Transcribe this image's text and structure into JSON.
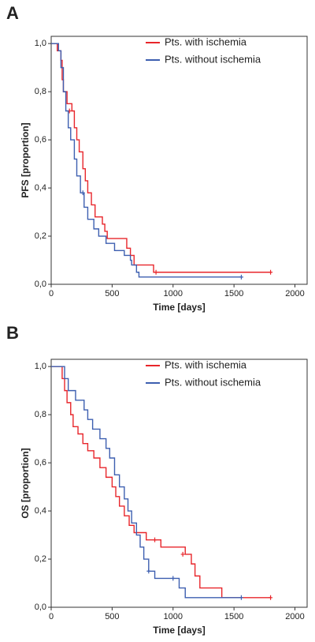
{
  "chart_data": [
    {
      "type": "step",
      "title": "A",
      "xlabel": "Time [days]",
      "ylabel": "PFS [proportion]",
      "xlim": [
        0,
        2100
      ],
      "ylim": [
        0,
        1.03
      ],
      "xticks": [
        0,
        500,
        1000,
        1500,
        2000
      ],
      "yticks": [
        {
          "value": 0,
          "label": "0,0"
        },
        {
          "value": 0.2,
          "label": "0,2"
        },
        {
          "value": 0.4,
          "label": "0,4"
        },
        {
          "value": 0.6,
          "label": "0,6"
        },
        {
          "value": 0.8,
          "label": "0,8"
        },
        {
          "value": 1,
          "label": "1,0"
        }
      ],
      "legend": "upper right",
      "series": [
        {
          "name": "Pts. with ischemia",
          "color": "#e8262b",
          "x": [
            0,
            50,
            80,
            90,
            100,
            130,
            170,
            190,
            210,
            230,
            260,
            280,
            300,
            330,
            360,
            420,
            440,
            460,
            600,
            620,
            650,
            680,
            840,
            1800
          ],
          "values": [
            1,
            0.97,
            0.93,
            0.85,
            0.8,
            0.75,
            0.72,
            0.65,
            0.6,
            0.55,
            0.48,
            0.43,
            0.38,
            0.33,
            0.28,
            0.25,
            0.22,
            0.19,
            0.19,
            0.15,
            0.12,
            0.08,
            0.05,
            0.05
          ],
          "censored": {
            "x": [
              150,
              860,
              1800
            ],
            "values": [
              0.72,
              0.05,
              0.05
            ]
          }
        },
        {
          "name": "Pts. without ischemia",
          "color": "#3d5fb0",
          "x": [
            0,
            60,
            80,
            100,
            120,
            140,
            160,
            190,
            210,
            240,
            270,
            300,
            350,
            390,
            450,
            520,
            600,
            650,
            660,
            700,
            720,
            1560
          ],
          "values": [
            1,
            0.97,
            0.9,
            0.8,
            0.72,
            0.65,
            0.6,
            0.52,
            0.45,
            0.38,
            0.32,
            0.27,
            0.23,
            0.2,
            0.17,
            0.14,
            0.12,
            0.1,
            0.08,
            0.05,
            0.03,
            0.03
          ],
          "censored": {
            "x": [
              260,
              1560
            ],
            "values": [
              0.38,
              0.03
            ]
          }
        }
      ]
    },
    {
      "type": "step",
      "title": "B",
      "xlabel": "Time [days]",
      "ylabel": "OS [proportion]",
      "xlim": [
        0,
        2100
      ],
      "ylim": [
        0,
        1.03
      ],
      "xticks": [
        0,
        500,
        1000,
        1500,
        2000
      ],
      "yticks": [
        {
          "value": 0,
          "label": "0,0"
        },
        {
          "value": 0.2,
          "label": "0,2"
        },
        {
          "value": 0.4,
          "label": "0,4"
        },
        {
          "value": 0.6,
          "label": "0,6"
        },
        {
          "value": 0.8,
          "label": "0,8"
        },
        {
          "value": 1,
          "label": "1,0"
        }
      ],
      "legend": "upper right",
      "series": [
        {
          "name": "Pts. with ischemia",
          "color": "#e8262b",
          "x": [
            0,
            90,
            110,
            130,
            160,
            180,
            220,
            260,
            300,
            350,
            400,
            450,
            500,
            530,
            560,
            600,
            640,
            680,
            780,
            900,
            1100,
            1150,
            1180,
            1220,
            1400,
            1800
          ],
          "values": [
            1,
            0.95,
            0.9,
            0.85,
            0.8,
            0.75,
            0.72,
            0.68,
            0.65,
            0.62,
            0.58,
            0.54,
            0.5,
            0.46,
            0.42,
            0.38,
            0.34,
            0.31,
            0.28,
            0.25,
            0.22,
            0.18,
            0.13,
            0.08,
            0.04,
            0.04
          ],
          "censored": {
            "x": [
              850,
              1080,
              1800
            ],
            "values": [
              0.28,
              0.22,
              0.04
            ]
          }
        },
        {
          "name": "Pts. without ischemia",
          "color": "#3d5fb0",
          "x": [
            0,
            110,
            140,
            200,
            270,
            300,
            340,
            400,
            450,
            480,
            520,
            560,
            600,
            630,
            660,
            700,
            730,
            760,
            800,
            850,
            1050,
            1100,
            1560
          ],
          "values": [
            1,
            0.95,
            0.9,
            0.86,
            0.82,
            0.78,
            0.74,
            0.7,
            0.66,
            0.62,
            0.55,
            0.5,
            0.45,
            0.4,
            0.35,
            0.3,
            0.25,
            0.2,
            0.15,
            0.12,
            0.08,
            0.04,
            0.04
          ],
          "censored": {
            "x": [
              800,
              1000,
              1560
            ],
            "values": [
              0.15,
              0.12,
              0.04
            ]
          }
        }
      ]
    }
  ]
}
